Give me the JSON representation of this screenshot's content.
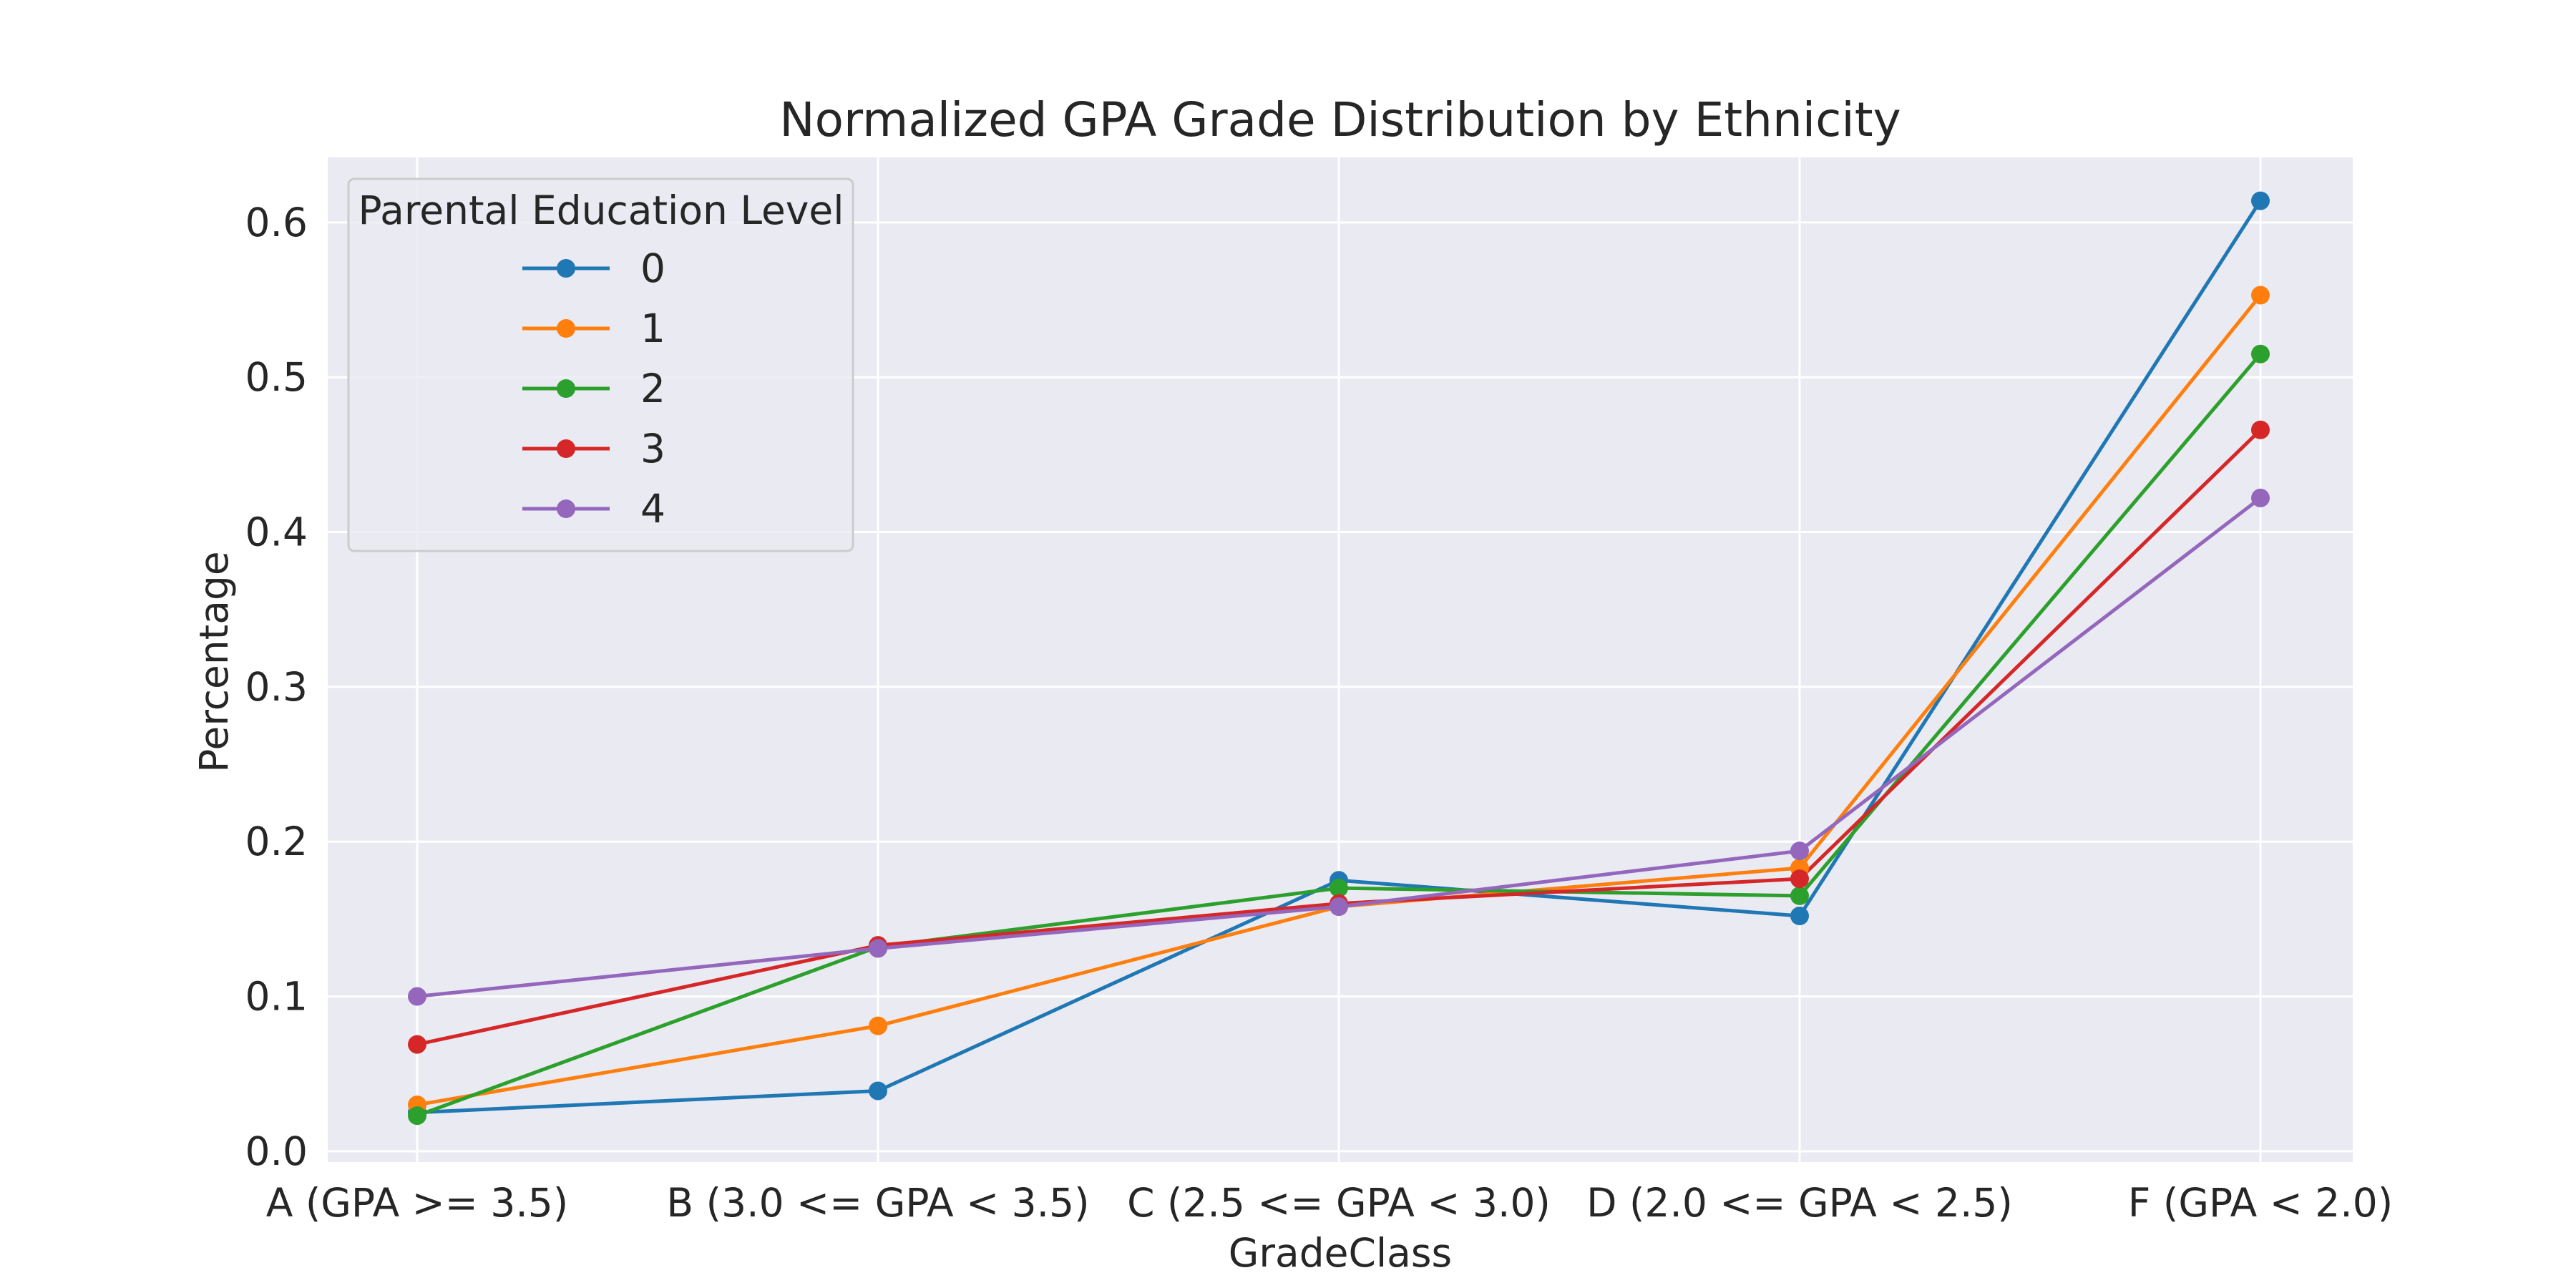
{
  "chart_data": {
    "type": "line",
    "title": "Normalized GPA Grade Distribution by Ethnicity",
    "xlabel": "GradeClass",
    "ylabel": "Percentage",
    "categories": [
      "A (GPA >= 3.5)",
      "B (3.0 <= GPA < 3.5)",
      "C (2.5 <= GPA < 3.0)",
      "D (2.0 <= GPA < 2.5)",
      "F (GPA < 2.0)"
    ],
    "ylim": [
      -0.007,
      0.642
    ],
    "yticks": [
      "0.0",
      "0.1",
      "0.2",
      "0.3",
      "0.4",
      "0.5",
      "0.6"
    ],
    "grid": true,
    "legend": {
      "title": "Parental Education Level",
      "placement": "top-left"
    },
    "series": [
      {
        "name": "0",
        "color": "#1f77b4",
        "values": [
          0.025,
          0.039,
          0.175,
          0.152,
          0.614
        ]
      },
      {
        "name": "1",
        "color": "#ff7f0e",
        "values": [
          0.03,
          0.081,
          0.158,
          0.183,
          0.553
        ]
      },
      {
        "name": "2",
        "color": "#2ca02c",
        "values": [
          0.023,
          0.132,
          0.17,
          0.165,
          0.515
        ]
      },
      {
        "name": "3",
        "color": "#d62728",
        "values": [
          0.069,
          0.133,
          0.16,
          0.176,
          0.466
        ]
      },
      {
        "name": "4",
        "color": "#9467bd",
        "values": [
          0.1,
          0.131,
          0.158,
          0.194,
          0.422
        ]
      }
    ]
  }
}
